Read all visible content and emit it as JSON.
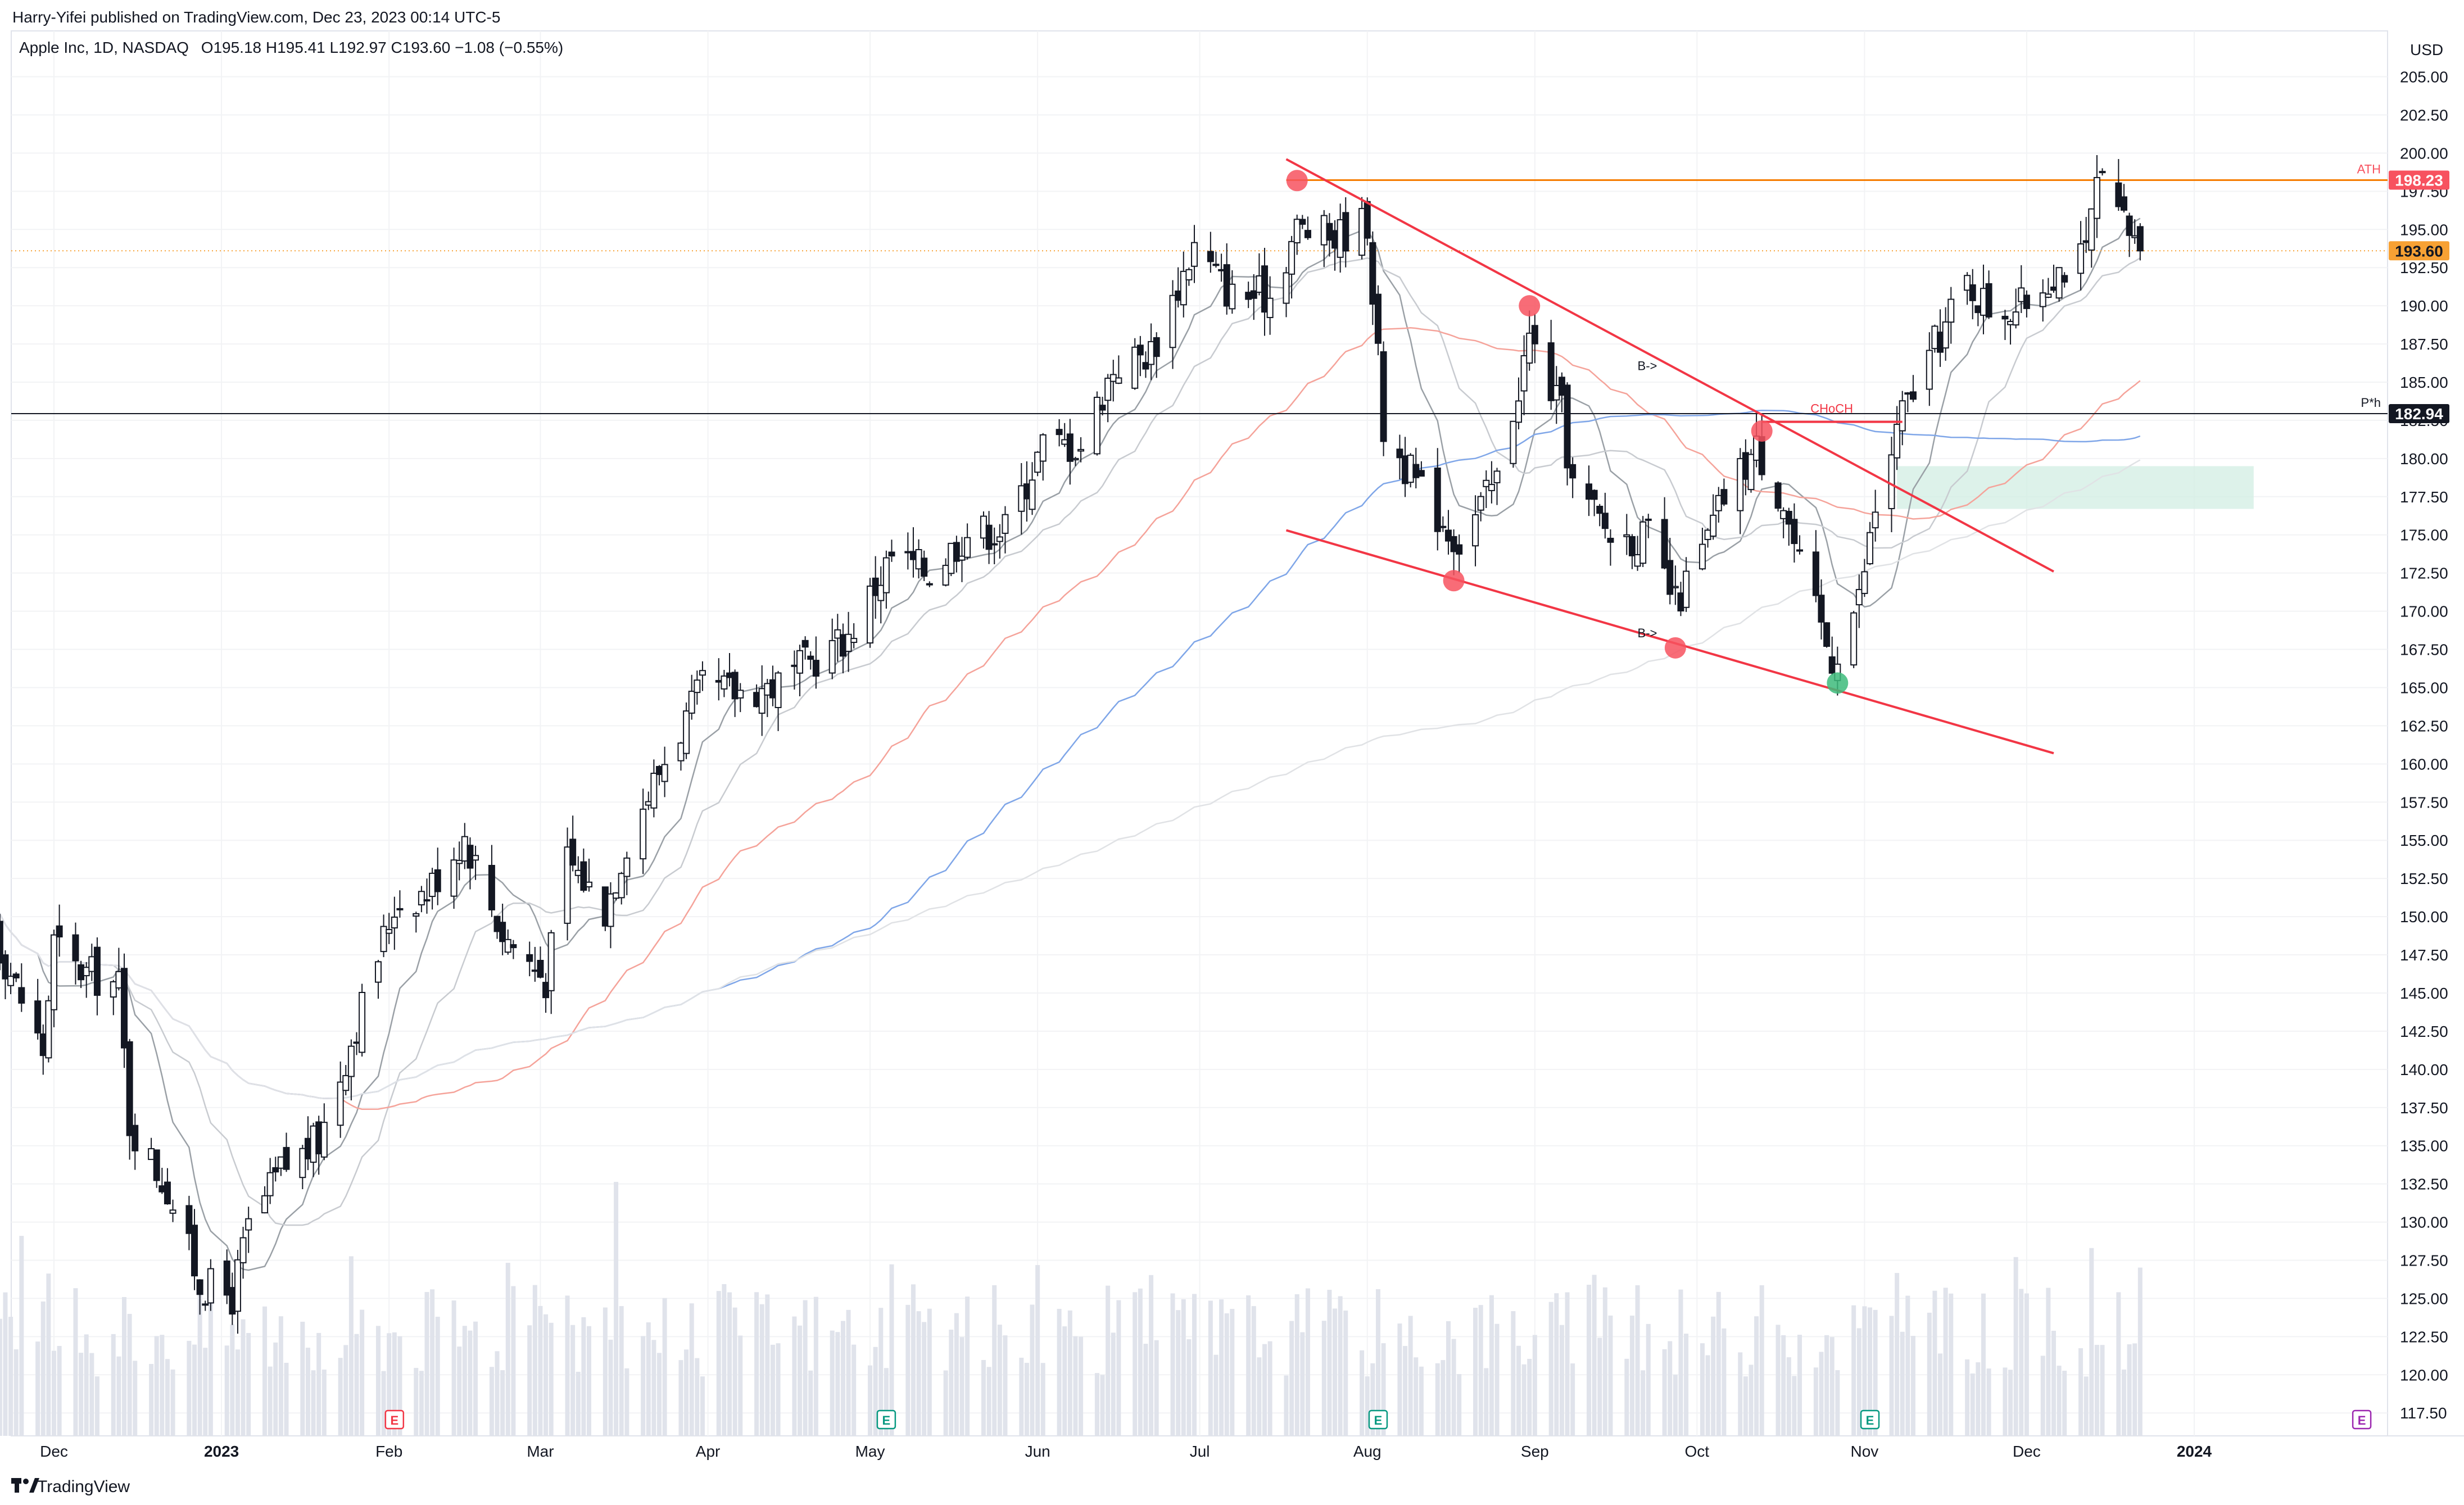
{
  "header": {
    "published": "Harry-Yifei published on TradingView.com, Dec 23, 2023 00:14 UTC-5",
    "symbol_line": "Apple Inc, 1D, NASDAQ",
    "ohlc": "O195.18  H195.41  L192.97  C193.60  −1.08 (−0.55%)"
  },
  "footer": {
    "logo_text": "TradingView"
  },
  "chart_data": {
    "type": "candlestick",
    "title": "Apple Inc, 1D, NASDAQ",
    "currency": "USD",
    "y_range": [
      116,
      208
    ],
    "y_ticks": [
      "205.00",
      "202.50",
      "200.00",
      "197.50",
      "195.00",
      "192.50",
      "190.00",
      "187.50",
      "185.00",
      "182.50",
      "180.00",
      "177.50",
      "175.00",
      "172.50",
      "170.00",
      "167.50",
      "165.00",
      "162.50",
      "160.00",
      "157.50",
      "155.00",
      "152.50",
      "150.00",
      "147.50",
      "145.00",
      "142.50",
      "140.00",
      "137.50",
      "135.00",
      "132.50",
      "130.00",
      "127.50",
      "125.00",
      "122.50",
      "120.00",
      "117.50"
    ],
    "x_labels": [
      {
        "label": "Dec",
        "date": "2022-12-01"
      },
      {
        "label": "2023",
        "date": "2023-01-01",
        "bold": true
      },
      {
        "label": "Feb",
        "date": "2023-02-01"
      },
      {
        "label": "Mar",
        "date": "2023-03-01"
      },
      {
        "label": "Apr",
        "date": "2023-04-01"
      },
      {
        "label": "May",
        "date": "2023-05-01"
      },
      {
        "label": "Jun",
        "date": "2023-06-01"
      },
      {
        "label": "Jul",
        "date": "2023-07-01"
      },
      {
        "label": "Aug",
        "date": "2023-08-01"
      },
      {
        "label": "Sep",
        "date": "2023-09-01"
      },
      {
        "label": "Oct",
        "date": "2023-10-01"
      },
      {
        "label": "Nov",
        "date": "2023-11-01"
      },
      {
        "label": "Dec",
        "date": "2023-12-01"
      },
      {
        "label": "2024",
        "date": "2024-01-01",
        "bold": true
      }
    ],
    "price_path": [
      [
        "2022-11-15",
        151.3
      ],
      [
        "2022-11-21",
        148.0
      ],
      [
        "2022-11-29",
        141.2
      ],
      [
        "2022-12-01",
        148.3
      ],
      [
        "2022-12-05",
        146.6
      ],
      [
        "2022-12-13",
        145.5
      ],
      [
        "2022-12-15",
        136.5
      ],
      [
        "2022-12-22",
        132.2
      ],
      [
        "2022-12-28",
        126.0
      ],
      [
        "2023-01-03",
        125.1
      ],
      [
        "2023-01-06",
        129.6
      ],
      [
        "2023-01-12",
        133.4
      ],
      [
        "2023-01-19",
        135.3
      ],
      [
        "2023-01-25",
        141.9
      ],
      [
        "2023-02-02",
        150.8
      ],
      [
        "2023-02-08",
        151.7
      ],
      [
        "2023-02-15",
        155.3
      ],
      [
        "2023-02-22",
        148.9
      ],
      [
        "2023-03-02",
        145.9
      ],
      [
        "2023-03-06",
        153.8
      ],
      [
        "2023-03-13",
        150.5
      ],
      [
        "2023-03-17",
        155.0
      ],
      [
        "2023-03-24",
        160.3
      ],
      [
        "2023-03-31",
        164.9
      ],
      [
        "2023-04-06",
        164.7
      ],
      [
        "2023-04-14",
        165.2
      ],
      [
        "2023-04-20",
        166.7
      ],
      [
        "2023-04-27",
        168.4
      ],
      [
        "2023-05-05",
        173.6
      ],
      [
        "2023-05-12",
        172.6
      ],
      [
        "2023-05-19",
        175.2
      ],
      [
        "2023-05-26",
        175.4
      ],
      [
        "2023-06-02",
        180.9
      ],
      [
        "2023-06-09",
        180.9
      ],
      [
        "2023-06-15",
        186.0
      ],
      [
        "2023-06-22",
        187.0
      ],
      [
        "2023-06-30",
        193.9
      ],
      [
        "2023-07-07",
        190.7
      ],
      [
        "2023-07-14",
        190.7
      ],
      [
        "2023-07-19",
        195.1
      ],
      [
        "2023-07-26",
        194.5
      ],
      [
        "2023-08-01",
        195.6
      ],
      [
        "2023-08-04",
        181.9
      ],
      [
        "2023-08-11",
        177.8
      ],
      [
        "2023-08-18",
        174.5
      ],
      [
        "2023-08-25",
        178.6
      ],
      [
        "2023-08-31",
        187.9
      ],
      [
        "2023-09-06",
        182.9
      ],
      [
        "2023-09-08",
        178.2
      ],
      [
        "2023-09-15",
        175.0
      ],
      [
        "2023-09-22",
        174.8
      ],
      [
        "2023-09-27",
        170.4
      ],
      [
        "2023-10-02",
        173.8
      ],
      [
        "2023-10-06",
        177.5
      ],
      [
        "2023-10-12",
        180.7
      ],
      [
        "2023-10-17",
        177.2
      ],
      [
        "2023-10-20",
        172.9
      ],
      [
        "2023-10-26",
        166.9
      ],
      [
        "2023-10-31",
        170.8
      ],
      [
        "2023-11-03",
        176.7
      ],
      [
        "2023-11-08",
        182.9
      ],
      [
        "2023-11-14",
        187.4
      ],
      [
        "2023-11-20",
        191.5
      ],
      [
        "2023-11-24",
        189.9
      ],
      [
        "2023-11-30",
        189.9
      ],
      [
        "2023-12-06",
        192.3
      ],
      [
        "2023-12-12",
        193.2
      ],
      [
        "2023-12-14",
        198.1
      ],
      [
        "2023-12-18",
        195.9
      ],
      [
        "2023-12-22",
        193.6
      ]
    ],
    "last_close": 193.6,
    "horizontal_levels": [
      {
        "name": "ATH",
        "value": 198.23,
        "label": "198.23",
        "tag": "ATH",
        "color": "#f7525f"
      },
      {
        "name": "P*h",
        "value": 182.94,
        "label": "182.94",
        "tag": "P*h",
        "color": "#131722"
      },
      {
        "name": "last",
        "value": 193.6,
        "label": "193.60",
        "color": "#f7a134"
      }
    ],
    "trendlines": [
      {
        "name": "upper-channel",
        "from": [
          "2023-07-17",
          199.6
        ],
        "to": [
          "2023-12-06",
          172.6
        ],
        "color": "#f23645"
      },
      {
        "name": "lower-channel",
        "from": [
          "2023-07-17",
          175.3
        ],
        "to": [
          "2023-12-06",
          160.7
        ],
        "color": "#f23645"
      },
      {
        "name": "choch-line",
        "from": [
          "2023-10-13",
          182.4
        ],
        "to": [
          "2023-11-08",
          182.4
        ],
        "color": "#f23645"
      }
    ],
    "annotations": [
      {
        "name": "choch-label",
        "text": "CHoCH",
        "date": "2023-10-22",
        "price": 183.0,
        "color": "#f23645"
      },
      {
        "name": "break-label-upper",
        "text": "B->",
        "date": "2023-09-20",
        "price": 185.8,
        "color": "#131722"
      },
      {
        "name": "break-label-lower",
        "text": "B->",
        "date": "2023-09-20",
        "price": 168.3,
        "color": "#131722"
      }
    ],
    "pivot_markers": [
      {
        "date": "2023-07-19",
        "price": 198.2,
        "color": "#f7525f"
      },
      {
        "date": "2023-08-31",
        "price": 190.0,
        "color": "#f7525f"
      },
      {
        "date": "2023-08-17",
        "price": 172.0,
        "color": "#f7525f"
      },
      {
        "date": "2023-09-27",
        "price": 167.6,
        "color": "#f7525f"
      },
      {
        "date": "2023-10-13",
        "price": 181.8,
        "color": "#f7525f"
      },
      {
        "date": "2023-10-27",
        "price": 165.3,
        "color": "#3dbb7b"
      }
    ],
    "zones": [
      {
        "name": "demand-zone",
        "from_date": "2023-11-07",
        "to_date": "2024-01-12",
        "low": 176.7,
        "high": 179.5,
        "color": "#d1eee3"
      }
    ],
    "earnings_markers": [
      {
        "date": "2023-02-02",
        "letter": "E",
        "color": "#f23645"
      },
      {
        "date": "2023-05-04",
        "letter": "E",
        "color": "#089981"
      },
      {
        "date": "2023-08-03",
        "letter": "E",
        "color": "#089981"
      },
      {
        "date": "2023-11-02",
        "letter": "E",
        "color": "#089981"
      },
      {
        "date": "2024-02-01",
        "letter": "E",
        "color": "#9c27b0"
      }
    ],
    "moving_averages": [
      {
        "name": "ma-short",
        "color": "#9aa0a6"
      },
      {
        "name": "ma-mid",
        "color": "#c8cbd0"
      },
      {
        "name": "ma-red",
        "color": "#f5a39a"
      },
      {
        "name": "ma-blue",
        "color": "#7fa6e8"
      },
      {
        "name": "ma-long",
        "color": "#e0e2e5"
      }
    ],
    "colors": {
      "up": "#ffffff",
      "down": "#131722",
      "wick": "#131722",
      "volume": "#e0e3eb",
      "grid": "#f2f3f5"
    }
  }
}
